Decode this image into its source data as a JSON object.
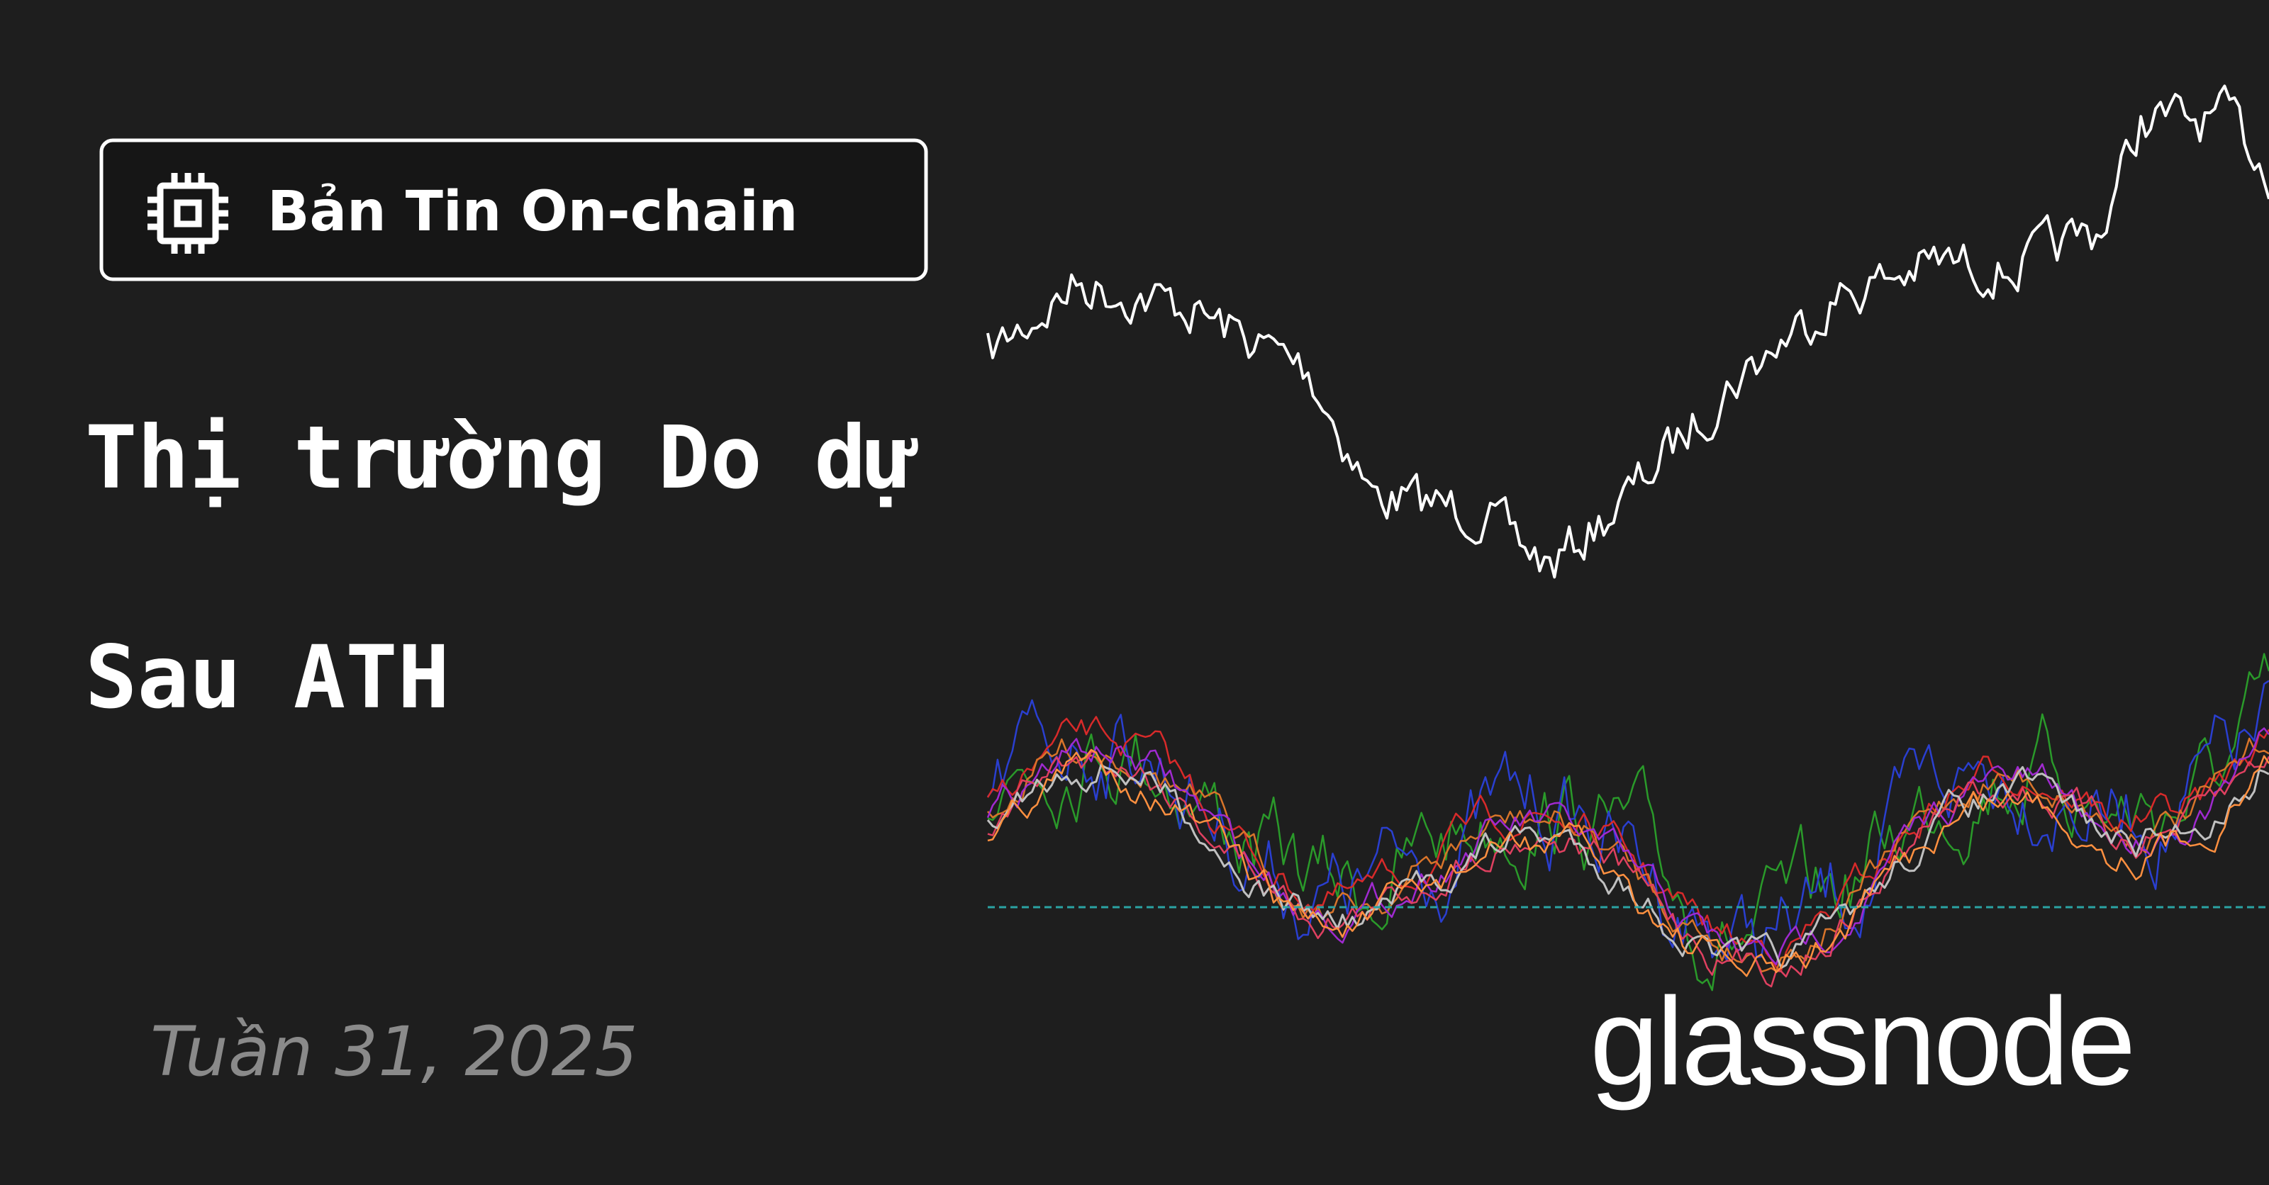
{
  "badge": {
    "label": "Bản Tin On-chain"
  },
  "title": {
    "lines": [
      "Thị trường Do dự",
      "Sau ATH"
    ]
  },
  "date": "Tuần 31, 2025",
  "logo": "glassnode"
}
